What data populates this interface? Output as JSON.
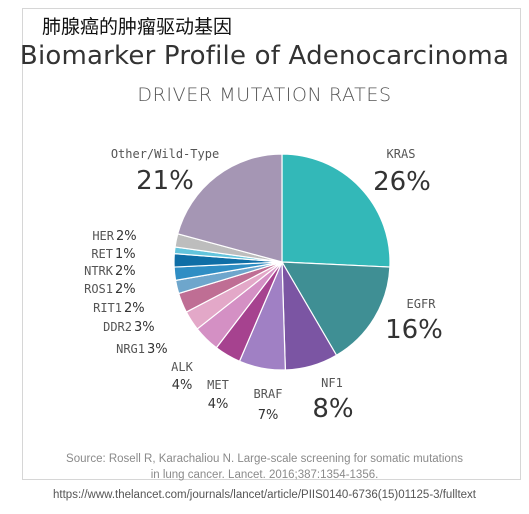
{
  "cn_title": "肺腺癌的肿瘤驱动基因",
  "chart_data": {
    "type": "pie",
    "title": "Biomarker Profile of Adenocarcinoma",
    "subtitle": "DRIVER MUTATION RATES",
    "slices": [
      {
        "label": "KRAS",
        "value": 26,
        "pct_text": "26%",
        "color": "#33b8b8"
      },
      {
        "label": "EGFR",
        "value": 16,
        "pct_text": "16%",
        "color": "#3f8f94"
      },
      {
        "label": "NF1",
        "value": 8,
        "pct_text": "8%",
        "color": "#7b55a3"
      },
      {
        "label": "BRAF",
        "value": 7,
        "pct_text": "7%",
        "color": "#a080c4"
      },
      {
        "label": "MET",
        "value": 4,
        "pct_text": "4%",
        "color": "#a6428f"
      },
      {
        "label": "ALK",
        "value": 4,
        "pct_text": "4%",
        "color": "#d490c4"
      },
      {
        "label": "NRG1",
        "value": 3,
        "pct_text": "3%",
        "color": "#e3a8c8"
      },
      {
        "label": "DDR2",
        "value": 3,
        "pct_text": "3%",
        "color": "#bf6e94"
      },
      {
        "label": "RIT1",
        "value": 2,
        "pct_text": "2%",
        "color": "#6ea6cc"
      },
      {
        "label": "ROS1",
        "value": 2,
        "pct_text": "2%",
        "color": "#2f8ec4"
      },
      {
        "label": "NTRK",
        "value": 2,
        "pct_text": "2%",
        "color": "#0f6ea6"
      },
      {
        "label": "RET",
        "value": 1,
        "pct_text": "1%",
        "color": "#63c4dc"
      },
      {
        "label": "HER",
        "value": 2,
        "pct_text": "2%",
        "color": "#bdbdbd"
      },
      {
        "label": "Other/Wild-Type",
        "value": 21,
        "pct_text": "21%",
        "color": "#a596b4"
      }
    ]
  },
  "source": {
    "line1": "Source: Rosell R, Karachaliou N. Large-scale screening for somatic mutations",
    "line2": "in lung cancer. Lancet. 2016;387:1354-1356.",
    "url": "https://www.thelancet.com/journals/lancet/article/PIIS0140-6736(15)01125-3/fulltext"
  }
}
